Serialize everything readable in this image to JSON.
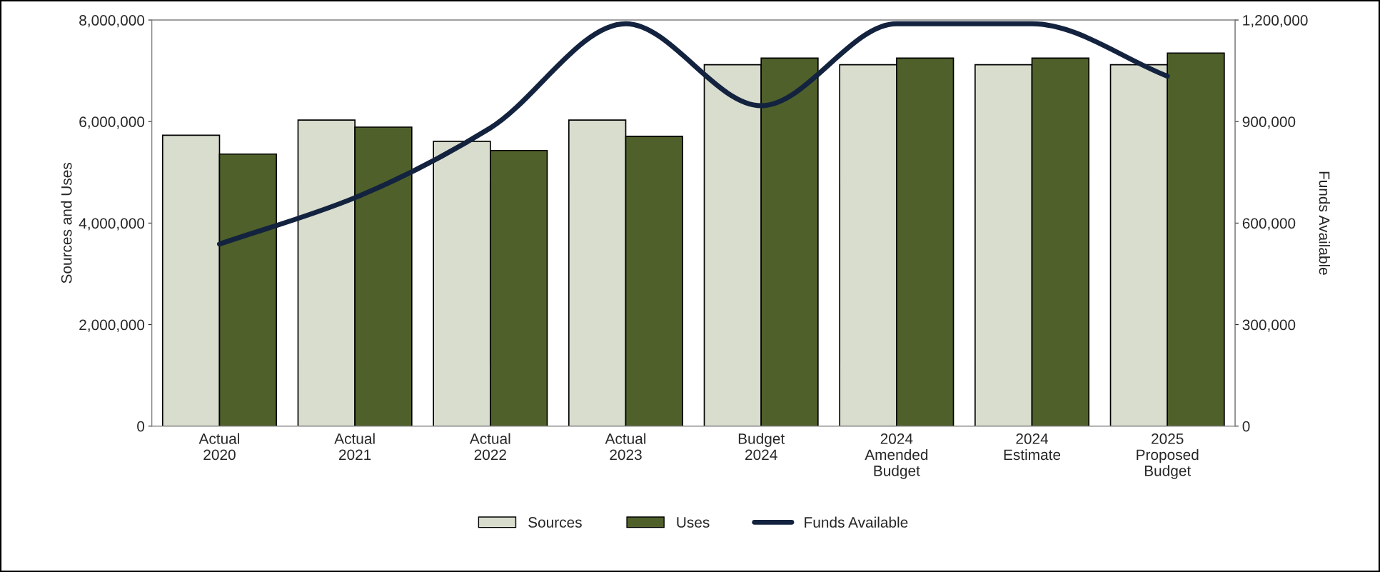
{
  "chart_data": {
    "type": "bar",
    "ylabel": "Sources and Uses",
    "y2label": "Funds Available",
    "categories": [
      "Actual\n2020",
      "Actual\n2021",
      "Actual\n2022",
      "Actual\n2023",
      "Budget\n2024",
      "2024\nAmended\nBudget",
      "2024\nEstimate",
      "2025\nProposed\nBudget"
    ],
    "series": [
      {
        "name": "Sources",
        "color": "#d9ddce",
        "values": [
          5730000,
          6030000,
          5610000,
          6030000,
          7120000,
          7120000,
          7120000,
          7120000
        ]
      },
      {
        "name": "Uses",
        "color": "#4f602a",
        "values": [
          5360000,
          5890000,
          5430000,
          5710000,
          7250000,
          7250000,
          7250000,
          7350000
        ]
      },
      {
        "name": "Funds Available",
        "type": "line",
        "axis": "y2",
        "color": "#13233f",
        "values": [
          538000,
          675000,
          881000,
          1189000,
          947000,
          1189000,
          1189000,
          1034000
        ]
      }
    ],
    "ylim": [
      0,
      8000000
    ],
    "yticks": [
      {
        "value": 0,
        "label": "0"
      },
      {
        "value": 2000000,
        "label": "2,000,000"
      },
      {
        "value": 4000000,
        "label": "4,000,000"
      },
      {
        "value": 6000000,
        "label": "6,000,000"
      },
      {
        "value": 8000000,
        "label": "8,000,000"
      }
    ],
    "y2lim": [
      0,
      1200000
    ],
    "y2ticks": [
      {
        "value": 0,
        "label": "0"
      },
      {
        "value": 300000,
        "label": "300,000"
      },
      {
        "value": 600000,
        "label": "600,000"
      },
      {
        "value": 900000,
        "label": "900,000"
      },
      {
        "value": 1200000,
        "label": "1,200,000"
      }
    ],
    "grid": false,
    "legend": "bottom"
  }
}
